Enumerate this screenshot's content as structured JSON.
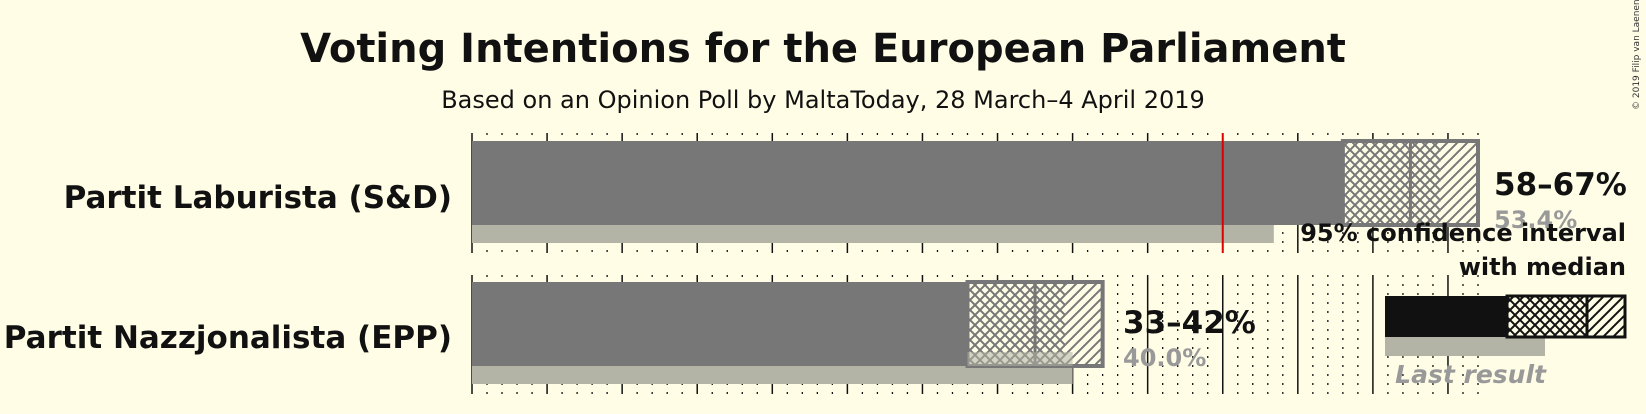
{
  "chart_data": {
    "type": "bar",
    "title": "Voting Intentions for the European Parliament",
    "subtitle": "Based on an Opinion Poll by MaltaToday, 28 March–4 April 2019",
    "copyright": "© 2019 Filip van Laenen",
    "categories": [
      "Partit Laburista (S&D)",
      "Partit Nazzjonalista (EPP)"
    ],
    "series": [
      {
        "name": "95% confidence interval with median",
        "values": [
          {
            "low": 58,
            "median": 62.5,
            "high": 67,
            "inner_low": 61,
            "inner_high": 64.5
          },
          {
            "low": 33,
            "median": 37.5,
            "high": 42,
            "inner_low": 35.5,
            "inner_high": 39.5
          }
        ]
      },
      {
        "name": "Last result",
        "values": [
          53.4,
          40.0
        ]
      }
    ],
    "range_labels": [
      "58–67%",
      "33–42%"
    ],
    "last_labels": [
      "53.4%",
      "40.0%"
    ],
    "majority_line": 50,
    "xlim": [
      0,
      67
    ],
    "tick_step": 5,
    "colors": {
      "bar": "#777777",
      "bar_dark": "#111111",
      "last_result": "#b3b3a6",
      "majority": "#dd0000",
      "background": "#fffde6"
    },
    "legend": {
      "line1": "95% confidence interval",
      "line2": "with median",
      "last_result_label": "Last result",
      "placement": "right"
    }
  }
}
